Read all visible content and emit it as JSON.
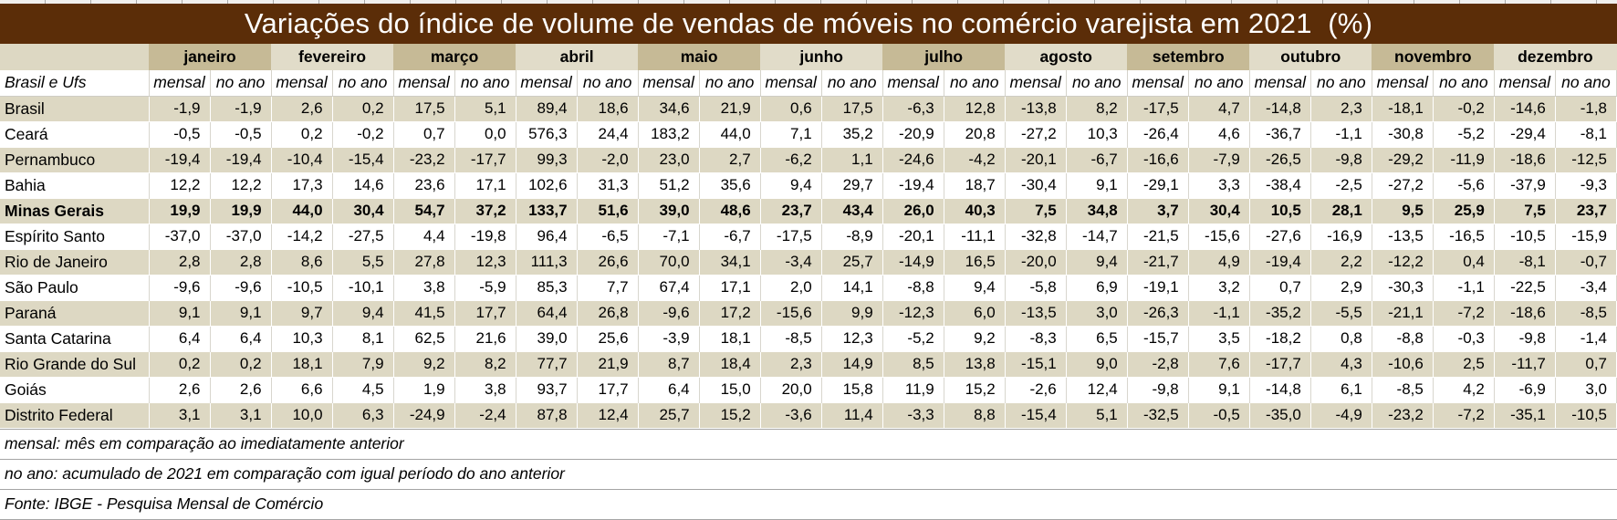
{
  "colors": {
    "title_bar": "#5B2D08",
    "title_text": "#FFFFFF",
    "header_dark": "#C6BA96",
    "header_light": "#E1DCC9",
    "row_stripe": "#DDD8C3"
  },
  "footnotes": [
    "mensal: mês em comparação ao imediatamente anterior",
    "no ano: acumulado de 2021 em comparação com igual período do ano anterior",
    "Fonte: IBGE - Pesquisa Mensal de Comércio"
  ],
  "chart_data": {
    "type": "table",
    "title": "Variações do índice de volume de vendas de móveis no comércio varejista em 2021  (%)",
    "corner_label": "Brasil e Ufs",
    "months": [
      "janeiro",
      "fevereiro",
      "março",
      "abril",
      "maio",
      "junho",
      "julho",
      "agosto",
      "setembro",
      "outubro",
      "novembro",
      "dezembro"
    ],
    "sub_columns": [
      "mensal",
      "no ano"
    ],
    "rows": [
      {
        "label": "Brasil",
        "bold": false,
        "values": [
          "-1,9",
          "-1,9",
          "2,6",
          "0,2",
          "17,5",
          "5,1",
          "89,4",
          "18,6",
          "34,6",
          "21,9",
          "0,6",
          "17,5",
          "-6,3",
          "12,8",
          "-13,8",
          "8,2",
          "-17,5",
          "4,7",
          "-14,8",
          "2,3",
          "-18,1",
          "-0,2",
          "-14,6",
          "-1,8"
        ]
      },
      {
        "label": "Ceará",
        "bold": false,
        "values": [
          "-0,5",
          "-0,5",
          "0,2",
          "-0,2",
          "0,7",
          "0,0",
          "576,3",
          "24,4",
          "183,2",
          "44,0",
          "7,1",
          "35,2",
          "-20,9",
          "20,8",
          "-27,2",
          "10,3",
          "-26,4",
          "4,6",
          "-36,7",
          "-1,1",
          "-30,8",
          "-5,2",
          "-29,4",
          "-8,1"
        ]
      },
      {
        "label": "Pernambuco",
        "bold": false,
        "values": [
          "-19,4",
          "-19,4",
          "-10,4",
          "-15,4",
          "-23,2",
          "-17,7",
          "99,3",
          "-2,0",
          "23,0",
          "2,7",
          "-6,2",
          "1,1",
          "-24,6",
          "-4,2",
          "-20,1",
          "-6,7",
          "-16,6",
          "-7,9",
          "-26,5",
          "-9,8",
          "-29,2",
          "-11,9",
          "-18,6",
          "-12,5"
        ]
      },
      {
        "label": "Bahia",
        "bold": false,
        "values": [
          "12,2",
          "12,2",
          "17,3",
          "14,6",
          "23,6",
          "17,1",
          "102,6",
          "31,3",
          "51,2",
          "35,6",
          "9,4",
          "29,7",
          "-19,4",
          "18,7",
          "-30,4",
          "9,1",
          "-29,1",
          "3,3",
          "-38,4",
          "-2,5",
          "-27,2",
          "-5,6",
          "-37,9",
          "-9,3"
        ]
      },
      {
        "label": "Minas Gerais",
        "bold": true,
        "values": [
          "19,9",
          "19,9",
          "44,0",
          "30,4",
          "54,7",
          "37,2",
          "133,7",
          "51,6",
          "39,0",
          "48,6",
          "23,7",
          "43,4",
          "26,0",
          "40,3",
          "7,5",
          "34,8",
          "3,7",
          "30,4",
          "10,5",
          "28,1",
          "9,5",
          "25,9",
          "7,5",
          "23,7"
        ]
      },
      {
        "label": "Espírito Santo",
        "bold": false,
        "values": [
          "-37,0",
          "-37,0",
          "-14,2",
          "-27,5",
          "4,4",
          "-19,8",
          "96,4",
          "-6,5",
          "-7,1",
          "-6,7",
          "-17,5",
          "-8,9",
          "-20,1",
          "-11,1",
          "-32,8",
          "-14,7",
          "-21,5",
          "-15,6",
          "-27,6",
          "-16,9",
          "-13,5",
          "-16,5",
          "-10,5",
          "-15,9"
        ]
      },
      {
        "label": "Rio de Janeiro",
        "bold": false,
        "values": [
          "2,8",
          "2,8",
          "8,6",
          "5,5",
          "27,8",
          "12,3",
          "111,3",
          "26,6",
          "70,0",
          "34,1",
          "-3,4",
          "25,7",
          "-14,9",
          "16,5",
          "-20,0",
          "9,4",
          "-21,7",
          "4,9",
          "-19,4",
          "2,2",
          "-12,2",
          "0,4",
          "-8,1",
          "-0,7"
        ]
      },
      {
        "label": "São Paulo",
        "bold": false,
        "values": [
          "-9,6",
          "-9,6",
          "-10,5",
          "-10,1",
          "3,8",
          "-5,9",
          "85,3",
          "7,7",
          "67,4",
          "17,1",
          "2,0",
          "14,1",
          "-8,8",
          "9,4",
          "-5,8",
          "6,9",
          "-19,1",
          "3,2",
          "0,7",
          "2,9",
          "-30,3",
          "-1,1",
          "-22,5",
          "-3,4"
        ]
      },
      {
        "label": "Paraná",
        "bold": false,
        "values": [
          "9,1",
          "9,1",
          "9,7",
          "9,4",
          "41,5",
          "17,7",
          "64,4",
          "26,8",
          "-9,6",
          "17,2",
          "-15,6",
          "9,9",
          "-12,3",
          "6,0",
          "-13,5",
          "3,0",
          "-26,3",
          "-1,1",
          "-35,2",
          "-5,5",
          "-21,1",
          "-7,2",
          "-18,6",
          "-8,5"
        ]
      },
      {
        "label": "Santa Catarina",
        "bold": false,
        "values": [
          "6,4",
          "6,4",
          "10,3",
          "8,1",
          "62,5",
          "21,6",
          "39,0",
          "25,6",
          "-3,9",
          "18,1",
          "-8,5",
          "12,3",
          "-5,2",
          "9,2",
          "-8,3",
          "6,5",
          "-15,7",
          "3,5",
          "-18,2",
          "0,8",
          "-8,8",
          "-0,3",
          "-9,8",
          "-1,4"
        ]
      },
      {
        "label": "Rio Grande do Sul",
        "bold": false,
        "values": [
          "0,2",
          "0,2",
          "18,1",
          "7,9",
          "9,2",
          "8,2",
          "77,7",
          "21,9",
          "8,7",
          "18,4",
          "2,3",
          "14,9",
          "8,5",
          "13,8",
          "-15,1",
          "9,0",
          "-2,8",
          "7,6",
          "-17,7",
          "4,3",
          "-10,6",
          "2,5",
          "-11,7",
          "0,7"
        ]
      },
      {
        "label": "Goiás",
        "bold": false,
        "values": [
          "2,6",
          "2,6",
          "6,6",
          "4,5",
          "1,9",
          "3,8",
          "93,7",
          "17,7",
          "6,4",
          "15,0",
          "20,0",
          "15,8",
          "11,9",
          "15,2",
          "-2,6",
          "12,4",
          "-9,8",
          "9,1",
          "-14,8",
          "6,1",
          "-8,5",
          "4,2",
          "-6,9",
          "3,0"
        ]
      },
      {
        "label": "Distrito Federal",
        "bold": false,
        "values": [
          "3,1",
          "3,1",
          "10,0",
          "6,3",
          "-24,9",
          "-2,4",
          "87,8",
          "12,4",
          "25,7",
          "15,2",
          "-3,6",
          "11,4",
          "-3,3",
          "8,8",
          "-15,4",
          "5,1",
          "-32,5",
          "-0,5",
          "-35,0",
          "-4,9",
          "-23,2",
          "-7,2",
          "-35,1",
          "-10,5"
        ]
      }
    ]
  }
}
